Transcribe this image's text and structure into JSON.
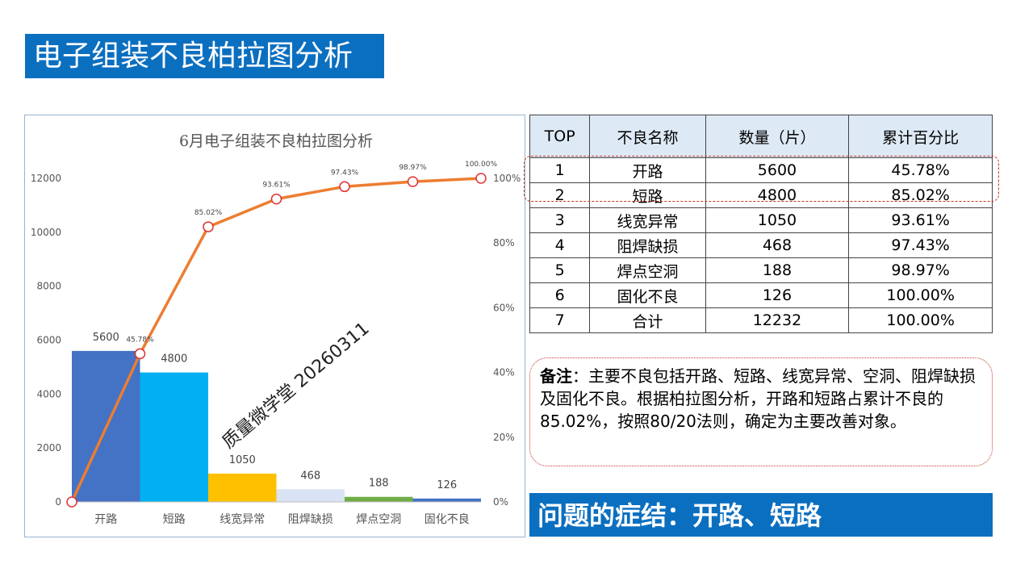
{
  "page_title": "电子组装不良柏拉图分析",
  "chart_data": {
    "type": "bar+line",
    "title": "6月电子组装不良柏拉图分析",
    "categories": [
      "开路",
      "短路",
      "线宽异常",
      "阻焊缺损",
      "焊点空洞",
      "固化不良"
    ],
    "values": [
      5600,
      4800,
      1050,
      468,
      188,
      126
    ],
    "cumulative_percent": [
      0,
      45.78,
      85.02,
      93.61,
      97.43,
      98.97,
      100.0
    ],
    "cumulative_labels": [
      "",
      "45.78%",
      "85.02%",
      "93.61%",
      "97.43%",
      "98.97%",
      "100.00%"
    ],
    "y_left_ticks": [
      "0",
      "2000",
      "4000",
      "6000",
      "8000",
      "10000",
      "12000"
    ],
    "y_left_range": [
      0,
      12000
    ],
    "y_right_ticks": [
      "0%",
      "20%",
      "40%",
      "60%",
      "80%",
      "100%"
    ],
    "y_right_range": [
      0,
      100
    ],
    "bar_colors": [
      "#4472c4",
      "#00b0f0",
      "#ffc000",
      "#dae3f3",
      "#70ad47",
      "#4472c4"
    ],
    "line_color": "#ed7d31",
    "marker_color": "#e03030",
    "watermark": "质量微学堂 20260311"
  },
  "table": {
    "headers": [
      "TOP",
      "不良名称",
      "数量（片）",
      "累计百分比"
    ],
    "rows": [
      [
        "1",
        "开路",
        "5600",
        "45.78%"
      ],
      [
        "2",
        "短路",
        "4800",
        "85.02%"
      ],
      [
        "3",
        "线宽异常",
        "1050",
        "93.61%"
      ],
      [
        "4",
        "阻焊缺损",
        "468",
        "97.43%"
      ],
      [
        "5",
        "焊点空洞",
        "188",
        "98.97%"
      ],
      [
        "6",
        "固化不良",
        "126",
        "100.00%"
      ],
      [
        "7",
        "合计",
        "12232",
        "100.00%"
      ]
    ]
  },
  "remark": {
    "label": "备注",
    "text": "：主要不良包括开路、短路、线宽异常、空洞、阻焊缺损及固化不良。根据柏拉图分析，开路和短路占累计不良的85.02%，按照80/20法则，确定为主要改善对象。"
  },
  "conclusion": "问题的症结：开路、短路"
}
